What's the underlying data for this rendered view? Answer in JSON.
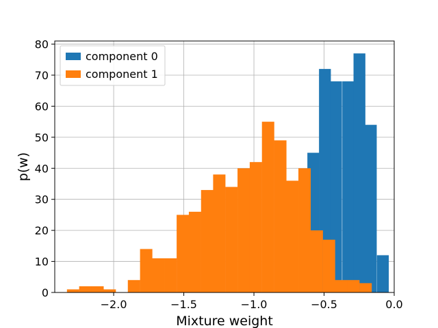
{
  "chart_data": {
    "type": "bar",
    "subtype": "histogram",
    "xlabel": "Mixture weight",
    "ylabel": "p(w)",
    "xlim": [
      -2.42,
      0.0
    ],
    "ylim": [
      0,
      81
    ],
    "xticks": [
      -2.0,
      -1.5,
      -1.0,
      -0.5,
      0.0
    ],
    "xtick_labels": [
      "−2.0",
      "−1.5",
      "−1.0",
      "−0.5",
      "0.0"
    ],
    "yticks": [
      0,
      10,
      20,
      30,
      40,
      50,
      60,
      70,
      80
    ],
    "ytick_labels": [
      "0",
      "10",
      "20",
      "30",
      "40",
      "50",
      "60",
      "70",
      "80"
    ],
    "grid": true,
    "legend_position": "top-left",
    "series": [
      {
        "name": "component 0",
        "color": "#1f77b4",
        "bin_width": 0.083,
        "bins": [
          {
            "x0": -0.619,
            "value": 45
          },
          {
            "x0": -0.536,
            "value": 72
          },
          {
            "x0": -0.457,
            "value": 68
          },
          {
            "x0": -0.37,
            "value": 68
          },
          {
            "x0": -0.29,
            "value": 77
          },
          {
            "x0": -0.209,
            "value": 54
          },
          {
            "x0": -0.123,
            "value": 12
          }
        ]
      },
      {
        "name": "component 1",
        "color": "#ff7f0e",
        "bin_width": 0.0865,
        "bins": [
          {
            "x0": -2.333,
            "value": 1
          },
          {
            "x0": -2.246,
            "value": 2
          },
          {
            "x0": -2.159,
            "value": 2
          },
          {
            "x0": -2.072,
            "value": 1
          },
          {
            "x0": -1.985,
            "value": 0
          },
          {
            "x0": -1.899,
            "value": 4
          },
          {
            "x0": -1.812,
            "value": 14
          },
          {
            "x0": -1.725,
            "value": 11
          },
          {
            "x0": -1.638,
            "value": 11
          },
          {
            "x0": -1.551,
            "value": 25
          },
          {
            "x0": -1.464,
            "value": 26
          },
          {
            "x0": -1.377,
            "value": 33
          },
          {
            "x0": -1.291,
            "value": 38
          },
          {
            "x0": -1.204,
            "value": 34
          },
          {
            "x0": -1.117,
            "value": 40
          },
          {
            "x0": -1.03,
            "value": 42
          },
          {
            "x0": -0.943,
            "value": 55
          },
          {
            "x0": -0.856,
            "value": 49
          },
          {
            "x0": -0.77,
            "value": 36
          },
          {
            "x0": -0.683,
            "value": 40
          },
          {
            "x0": -0.596,
            "value": 20
          },
          {
            "x0": -0.509,
            "value": 17
          },
          {
            "x0": -0.422,
            "value": 4
          },
          {
            "x0": -0.335,
            "value": 4
          },
          {
            "x0": -0.248,
            "value": 3
          }
        ]
      }
    ]
  }
}
